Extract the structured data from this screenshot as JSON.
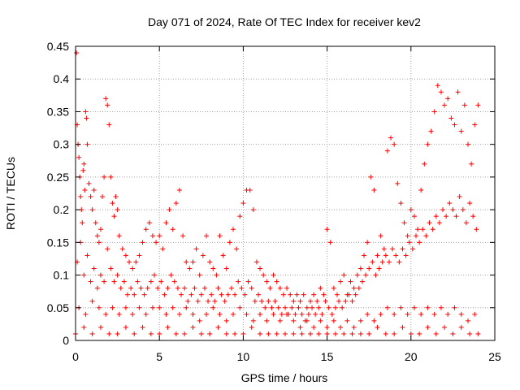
{
  "chart_data": {
    "type": "scatter",
    "title": "Day 071 of 2024, Rate Of TEC Index for receiver kev2",
    "xlabel": "GPS time / hours",
    "ylabel": "ROTI / TECUs",
    "xlim": [
      0,
      25
    ],
    "ylim": [
      0,
      0.45
    ],
    "xticks": [
      "0",
      "5",
      "10",
      "15",
      "20",
      "25"
    ],
    "yticks": [
      "0",
      "0.05",
      "0.1",
      "0.15",
      "0.2",
      "0.25",
      "0.3",
      "0.35",
      "0.4",
      "0.45"
    ],
    "grid": true,
    "legend": "none",
    "marker": "plus",
    "color": "#ff0000",
    "series": [
      {
        "x": [
          0.05,
          0.1,
          0.15,
          0.2,
          0.25,
          0.3,
          0.35,
          0.4,
          0.45,
          0.5,
          0.55,
          0.6,
          0.65,
          0.7,
          0.8,
          0.9,
          1.0,
          1.1,
          1.2,
          1.3,
          1.4,
          1.5,
          1.6,
          1.7,
          1.8,
          1.9,
          2.0,
          2.1,
          2.2,
          2.3,
          2.4,
          2.5,
          2.6,
          2.8,
          3.0,
          3.2,
          3.4,
          3.6,
          3.8,
          4.0,
          4.2,
          4.4,
          4.6,
          4.8,
          5.0,
          5.2,
          5.4,
          5.6,
          5.8,
          6.0,
          6.2,
          6.4,
          6.6,
          6.8,
          7.0,
          7.2,
          7.4,
          7.6,
          7.8,
          8.0,
          8.2,
          8.4,
          8.6,
          8.8,
          9.0,
          9.2,
          9.4,
          9.6,
          9.8,
          10.0,
          10.2,
          10.4,
          10.6,
          10.8,
          11.0,
          11.2,
          11.4,
          11.6,
          11.8,
          12.0,
          12.2,
          12.4,
          12.6,
          12.8,
          13.0,
          13.2,
          13.4,
          13.6,
          13.8,
          14.0,
          14.2,
          14.4,
          14.6,
          14.8,
          15.0,
          15.2,
          15.4,
          15.6,
          15.8,
          16.0,
          16.2,
          16.4,
          16.6,
          16.8,
          17.0,
          17.2,
          17.4,
          17.6,
          17.8,
          18.0,
          18.2,
          18.4,
          18.6,
          18.8,
          19.0,
          19.2,
          19.4,
          19.6,
          19.8,
          20.0,
          20.2,
          20.4,
          20.6,
          20.8,
          21.0,
          21.2,
          21.4,
          21.6,
          21.8,
          22.0,
          22.2,
          22.4,
          22.6,
          22.8,
          23.0,
          23.2,
          23.4,
          23.6,
          23.8,
          24.0
        ],
        "y": [
          0.44,
          0.33,
          0.3,
          0.28,
          0.25,
          0.22,
          0.2,
          0.18,
          0.26,
          0.27,
          0.23,
          0.35,
          0.34,
          0.3,
          0.24,
          0.22,
          0.2,
          0.23,
          0.18,
          0.16,
          0.15,
          0.17,
          0.22,
          0.25,
          0.37,
          0.36,
          0.33,
          0.25,
          0.21,
          0.19,
          0.22,
          0.2,
          0.16,
          0.14,
          0.13,
          0.12,
          0.11,
          0.12,
          0.13,
          0.15,
          0.17,
          0.18,
          0.16,
          0.15,
          0.16,
          0.14,
          0.18,
          0.2,
          0.17,
          0.21,
          0.23,
          0.16,
          0.12,
          0.11,
          0.12,
          0.14,
          0.1,
          0.13,
          0.16,
          0.12,
          0.11,
          0.1,
          0.16,
          0.13,
          0.11,
          0.15,
          0.17,
          0.14,
          0.19,
          0.21,
          0.23,
          0.23,
          0.2,
          0.12,
          0.11,
          0.1,
          0.09,
          0.08,
          0.1,
          0.09,
          0.08,
          0.07,
          0.08,
          0.07,
          0.06,
          0.07,
          0.06,
          0.07,
          0.05,
          0.06,
          0.07,
          0.06,
          0.08,
          0.07,
          0.17,
          0.15,
          0.08,
          0.07,
          0.09,
          0.1,
          0.07,
          0.09,
          0.08,
          0.1,
          0.11,
          0.13,
          0.15,
          0.25,
          0.23,
          0.13,
          0.16,
          0.14,
          0.29,
          0.31,
          0.3,
          0.24,
          0.21,
          0.18,
          0.16,
          0.2,
          0.19,
          0.17,
          0.23,
          0.27,
          0.3,
          0.32,
          0.35,
          0.39,
          0.38,
          0.36,
          0.37,
          0.34,
          0.33,
          0.38,
          0.32,
          0.36,
          0.3,
          0.27,
          0.33,
          0.36
        ]
      },
      {
        "x": [
          0.1,
          0.3,
          0.5,
          0.7,
          0.9,
          1.1,
          1.3,
          1.5,
          1.7,
          1.9,
          2.1,
          2.3,
          2.5,
          2.7,
          2.9,
          3.1,
          3.3,
          3.5,
          3.7,
          3.9,
          4.1,
          4.3,
          4.5,
          4.7,
          4.9,
          5.1,
          5.3,
          5.5,
          5.7,
          5.9,
          6.1,
          6.3,
          6.5,
          6.7,
          6.9,
          7.1,
          7.3,
          7.5,
          7.7,
          7.9,
          8.1,
          8.3,
          8.5,
          8.7,
          8.9,
          9.1,
          9.3,
          9.5,
          9.7,
          9.9,
          10.1,
          10.3,
          10.5,
          10.7,
          10.9,
          11.1,
          11.3,
          11.5,
          11.7,
          11.9,
          12.1,
          12.3,
          12.5,
          12.7,
          12.9,
          13.1,
          13.3,
          13.5,
          13.7,
          13.9,
          14.1,
          14.3,
          14.5,
          14.7,
          14.9,
          15.1,
          15.3,
          15.5,
          15.7,
          15.9,
          16.1,
          16.3,
          16.5,
          16.7,
          16.9,
          17.1,
          17.3,
          17.5,
          17.7,
          17.9,
          18.1,
          18.3,
          18.5,
          18.7,
          18.9,
          19.1,
          19.3,
          19.5,
          19.7,
          19.9,
          20.1,
          20.3,
          20.5,
          20.7,
          20.9,
          21.1,
          21.3,
          21.5,
          21.7,
          21.9,
          22.1,
          22.3,
          22.5,
          22.7,
          22.9,
          23.1,
          23.3,
          23.5,
          23.7,
          23.9
        ],
        "y": [
          0.12,
          0.15,
          0.1,
          0.13,
          0.09,
          0.11,
          0.08,
          0.1,
          0.09,
          0.14,
          0.11,
          0.09,
          0.1,
          0.08,
          0.09,
          0.07,
          0.08,
          0.07,
          0.09,
          0.08,
          0.07,
          0.08,
          0.09,
          0.1,
          0.08,
          0.09,
          0.07,
          0.08,
          0.1,
          0.09,
          0.08,
          0.07,
          0.08,
          0.06,
          0.07,
          0.08,
          0.06,
          0.07,
          0.08,
          0.06,
          0.07,
          0.06,
          0.08,
          0.07,
          0.06,
          0.07,
          0.08,
          0.07,
          0.09,
          0.08,
          0.07,
          0.09,
          0.08,
          0.06,
          0.07,
          0.06,
          0.05,
          0.06,
          0.05,
          0.06,
          0.05,
          0.04,
          0.05,
          0.04,
          0.05,
          0.04,
          0.05,
          0.04,
          0.03,
          0.04,
          0.05,
          0.04,
          0.05,
          0.04,
          0.06,
          0.05,
          0.04,
          0.05,
          0.06,
          0.05,
          0.06,
          0.07,
          0.06,
          0.07,
          0.08,
          0.09,
          0.1,
          0.11,
          0.12,
          0.1,
          0.11,
          0.12,
          0.13,
          0.12,
          0.14,
          0.13,
          0.12,
          0.14,
          0.13,
          0.15,
          0.14,
          0.16,
          0.15,
          0.17,
          0.16,
          0.18,
          0.17,
          0.19,
          0.18,
          0.2,
          0.19,
          0.21,
          0.2,
          0.19,
          0.22,
          0.2,
          0.18,
          0.21,
          0.19,
          0.17
        ]
      },
      {
        "x": [
          0.2,
          0.6,
          1.0,
          1.4,
          1.8,
          2.2,
          2.6,
          3.0,
          3.4,
          3.8,
          4.2,
          4.6,
          5.0,
          5.4,
          5.8,
          6.2,
          6.6,
          7.0,
          7.4,
          7.8,
          8.2,
          8.6,
          9.0,
          9.4,
          9.8,
          10.2,
          10.6,
          11.0,
          11.4,
          11.8,
          12.2,
          12.6,
          13.0,
          13.4,
          13.8,
          14.2,
          14.6,
          15.0,
          15.4,
          15.8,
          16.2,
          16.6,
          17.0,
          17.4,
          17.8,
          18.2,
          18.6,
          19.0,
          19.4,
          19.8,
          20.2,
          20.6,
          21.0,
          21.4,
          21.8,
          22.2,
          22.6,
          23.0,
          23.4,
          23.8
        ],
        "y": [
          0.05,
          0.04,
          0.06,
          0.05,
          0.04,
          0.05,
          0.04,
          0.05,
          0.04,
          0.05,
          0.04,
          0.05,
          0.05,
          0.04,
          0.05,
          0.04,
          0.05,
          0.04,
          0.03,
          0.04,
          0.05,
          0.04,
          0.03,
          0.04,
          0.05,
          0.04,
          0.03,
          0.04,
          0.03,
          0.04,
          0.03,
          0.04,
          0.03,
          0.02,
          0.03,
          0.02,
          0.03,
          0.02,
          0.03,
          0.02,
          0.03,
          0.02,
          0.03,
          0.04,
          0.03,
          0.04,
          0.05,
          0.04,
          0.05,
          0.04,
          0.05,
          0.04,
          0.05,
          0.04,
          0.05,
          0.04,
          0.05,
          0.04,
          0.03,
          0.04
        ]
      },
      {
        "x": [
          0.0,
          0.5,
          1.0,
          1.5,
          2.0,
          2.5,
          3.0,
          3.5,
          4.0,
          4.5,
          5.0,
          5.5,
          6.0,
          6.5,
          7.0,
          7.5,
          8.0,
          8.5,
          9.0,
          9.5,
          10.0,
          10.5,
          11.0,
          11.5,
          12.0,
          12.5,
          13.0,
          13.5,
          14.0,
          14.5,
          15.0,
          15.5,
          16.0,
          16.5,
          17.0,
          17.5,
          18.0,
          18.5,
          19.0,
          19.5,
          20.0,
          20.5,
          21.0,
          21.5,
          22.0,
          22.5,
          23.0,
          23.5,
          24.0
        ],
        "y": [
          0.01,
          0.02,
          0.01,
          0.02,
          0.01,
          0.01,
          0.02,
          0.01,
          0.02,
          0.01,
          0.01,
          0.02,
          0.01,
          0.01,
          0.02,
          0.01,
          0.01,
          0.02,
          0.01,
          0.01,
          0.01,
          0.02,
          0.01,
          0.01,
          0.01,
          0.01,
          0.01,
          0.01,
          0.01,
          0.01,
          0.01,
          0.01,
          0.01,
          0.01,
          0.01,
          0.01,
          0.02,
          0.01,
          0.01,
          0.02,
          0.01,
          0.01,
          0.02,
          0.01,
          0.02,
          0.01,
          0.02,
          0.01,
          0.01
        ]
      }
    ]
  }
}
